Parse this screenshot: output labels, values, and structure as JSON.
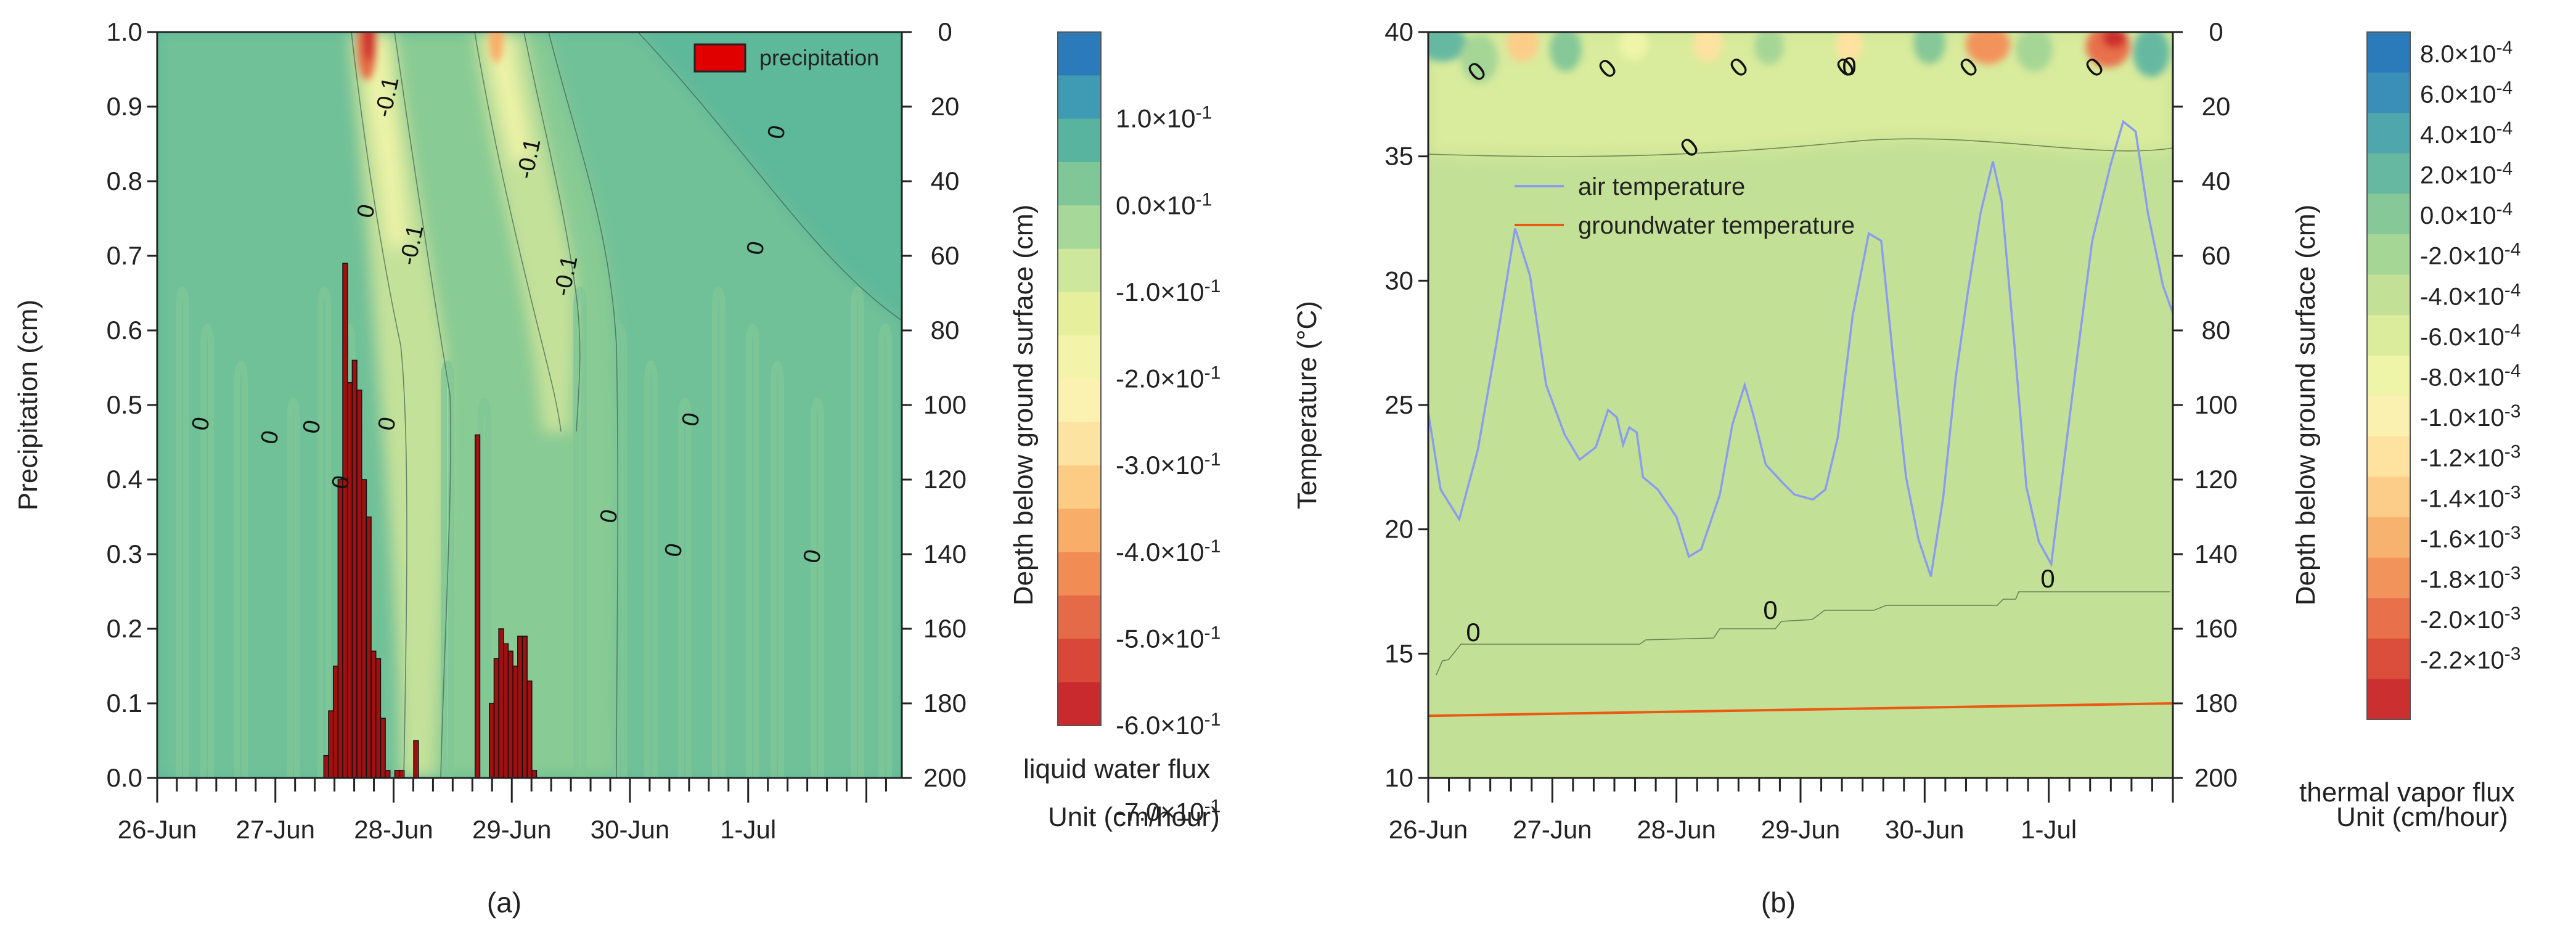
{
  "figure": {
    "panel_a_label": "(a)",
    "panel_b_label": "(b)"
  },
  "chart_data": [
    {
      "panel": "a",
      "type": "bar",
      "ylabel": "Precipitation (cm)",
      "y2label": "Depth below ground surface (cm)",
      "ylim": [
        0,
        1.0
      ],
      "yticks": [
        "0.0",
        "0.1",
        "0.2",
        "0.3",
        "0.4",
        "0.5",
        "0.6",
        "0.7",
        "0.8",
        "0.9",
        "1.0"
      ],
      "y2lim": [
        0,
        200
      ],
      "y2ticks": [
        "0",
        "20",
        "40",
        "60",
        "80",
        "100",
        "120",
        "140",
        "160",
        "180",
        "200"
      ],
      "x_categories": [
        "26-Jun",
        "27-Jun",
        "28-Jun",
        "29-Jun",
        "30-Jun",
        "1-Jul"
      ],
      "x_range_days": [
        0,
        6
      ],
      "legend": {
        "placement": "top-right",
        "entries": [
          "precipitation"
        ]
      },
      "background_color": "#5eb89a",
      "contour_labels": [
        "-0.1",
        "-0.1",
        "-0.1",
        "-0.1",
        "0",
        "0",
        "0",
        "0",
        "0",
        "0",
        "0",
        "0",
        "0",
        "0",
        "0",
        "0"
      ],
      "colorbar": {
        "title": "liquid water flux",
        "unit": "Unit (cm/hour)",
        "labels": [
          "1.0×10-1",
          "0.0×10-1",
          "-1.0×10-1",
          "-2.0×10-1",
          "-3.0×10-1",
          "-4.0×10-1",
          "-5.0×10-1",
          "-6.0×10-1",
          "-7.0×10-1"
        ],
        "colors": [
          "#2b7bba",
          "#3f9bb4",
          "#58b39f",
          "#7fc797",
          "#a6d89a",
          "#cde79c",
          "#e5ef9c",
          "#f3f4a9",
          "#fbf1b1",
          "#fde3a1",
          "#fccc85",
          "#f8ad68",
          "#f18c55",
          "#e56a47",
          "#d84738",
          "#c82a2e"
        ]
      },
      "series": [
        {
          "name": "precipitation",
          "color": "#c00000",
          "points": [
            {
              "t": 1.43,
              "v": 0.03
            },
            {
              "t": 1.47,
              "v": 0.09
            },
            {
              "t": 1.51,
              "v": 0.15
            },
            {
              "t": 1.55,
              "v": 0.4
            },
            {
              "t": 1.59,
              "v": 0.69
            },
            {
              "t": 1.63,
              "v": 0.53
            },
            {
              "t": 1.67,
              "v": 0.56
            },
            {
              "t": 1.71,
              "v": 0.52
            },
            {
              "t": 1.75,
              "v": 0.4
            },
            {
              "t": 1.79,
              "v": 0.35
            },
            {
              "t": 1.83,
              "v": 0.17
            },
            {
              "t": 1.87,
              "v": 0.16
            },
            {
              "t": 1.91,
              "v": 0.08
            },
            {
              "t": 1.95,
              "v": 0.01
            },
            {
              "t": 2.03,
              "v": 0.01
            },
            {
              "t": 2.07,
              "v": 0.01
            },
            {
              "t": 2.19,
              "v": 0.05
            },
            {
              "t": 2.71,
              "v": 0.46
            },
            {
              "t": 2.83,
              "v": 0.1
            },
            {
              "t": 2.87,
              "v": 0.16
            },
            {
              "t": 2.91,
              "v": 0.2
            },
            {
              "t": 2.95,
              "v": 0.18
            },
            {
              "t": 2.99,
              "v": 0.17
            },
            {
              "t": 3.03,
              "v": 0.15
            },
            {
              "t": 3.07,
              "v": 0.19
            },
            {
              "t": 3.11,
              "v": 0.19
            },
            {
              "t": 3.15,
              "v": 0.13
            },
            {
              "t": 3.19,
              "v": 0.01
            }
          ]
        }
      ]
    },
    {
      "panel": "b",
      "type": "line",
      "ylabel": "Temperature (°C)",
      "y2label": "Depth below ground surface (cm)",
      "ylim": [
        10,
        40
      ],
      "yticks": [
        "10",
        "15",
        "20",
        "25",
        "30",
        "35",
        "40"
      ],
      "y2lim": [
        0,
        200
      ],
      "y2ticks": [
        "0",
        "20",
        "40",
        "60",
        "80",
        "100",
        "120",
        "140",
        "160",
        "180",
        "200"
      ],
      "x_categories": [
        "26-Jun",
        "27-Jun",
        "28-Jun",
        "29-Jun",
        "30-Jun",
        "1-Jul"
      ],
      "x_range_days": [
        0,
        6
      ],
      "legend": {
        "placement": "upper-left",
        "entries": [
          "air temperature",
          "groundwater temperature"
        ]
      },
      "background_color": "#c3e196",
      "contour_labels": [
        "0",
        "0",
        "0",
        "0",
        "0",
        "0",
        "0",
        "0",
        "0",
        "0",
        "0"
      ],
      "colorbar": {
        "title": "thermal vapor flux",
        "unit": "Unit (cm/hour)",
        "labels": [
          "8.0×10-4",
          "6.0×10-4",
          "4.0×10-4",
          "2.0×10-4",
          "0.0×10-4",
          "-2.0×10-4",
          "-4.0×10-4",
          "-6.0×10-4",
          "-8.0×10-4",
          "-1.0×10-3",
          "-1.2×10-3",
          "-1.4×10-3",
          "-1.6×10-3",
          "-1.8×10-3",
          "-2.0×10-3",
          "-2.2×10-3"
        ],
        "colors": [
          "#2b7bba",
          "#3a8fb8",
          "#4fa6ad",
          "#66b9a0",
          "#86c898",
          "#a6d696",
          "#c3e196",
          "#dbec9c",
          "#eef4a8",
          "#faf1b1",
          "#fde2a0",
          "#fccd89",
          "#f8b26f",
          "#f2935c",
          "#e8704b",
          "#dc4e3c",
          "#cc2f2f"
        ]
      },
      "series": [
        {
          "name": "air temperature",
          "color": "#8a9cef",
          "points": [
            [
              0.0,
              24.7
            ],
            [
              0.1,
              21.6
            ],
            [
              0.25,
              20.4
            ],
            [
              0.4,
              23.2
            ],
            [
              0.55,
              27.5
            ],
            [
              0.7,
              32.1
            ],
            [
              0.82,
              30.2
            ],
            [
              0.95,
              25.8
            ],
            [
              1.1,
              23.8
            ],
            [
              1.22,
              22.8
            ],
            [
              1.35,
              23.3
            ],
            [
              1.45,
              24.8
            ],
            [
              1.52,
              24.5
            ],
            [
              1.57,
              23.4
            ],
            [
              1.62,
              24.1
            ],
            [
              1.68,
              23.9
            ],
            [
              1.73,
              22.1
            ],
            [
              1.85,
              21.6
            ],
            [
              2.0,
              20.5
            ],
            [
              2.1,
              18.9
            ],
            [
              2.2,
              19.2
            ],
            [
              2.35,
              21.4
            ],
            [
              2.45,
              24.2
            ],
            [
              2.55,
              25.8
            ],
            [
              2.62,
              24.6
            ],
            [
              2.72,
              22.6
            ],
            [
              2.85,
              21.9
            ],
            [
              2.95,
              21.4
            ],
            [
              3.1,
              21.2
            ],
            [
              3.2,
              21.6
            ],
            [
              3.3,
              23.7
            ],
            [
              3.42,
              28.6
            ],
            [
              3.55,
              31.9
            ],
            [
              3.65,
              31.6
            ],
            [
              3.75,
              26.7
            ],
            [
              3.85,
              22.1
            ],
            [
              3.95,
              19.6
            ],
            [
              4.05,
              18.1
            ],
            [
              4.15,
              21.3
            ],
            [
              4.25,
              26.1
            ],
            [
              4.35,
              29.6
            ],
            [
              4.45,
              32.7
            ],
            [
              4.55,
              34.8
            ],
            [
              4.62,
              33.2
            ],
            [
              4.72,
              27.6
            ],
            [
              4.82,
              21.7
            ],
            [
              4.92,
              19.5
            ],
            [
              5.02,
              18.6
            ],
            [
              5.1,
              21.8
            ],
            [
              5.22,
              26.6
            ],
            [
              5.35,
              31.6
            ],
            [
              5.5,
              34.7
            ],
            [
              5.6,
              36.4
            ],
            [
              5.7,
              36.0
            ],
            [
              5.8,
              32.7
            ],
            [
              5.92,
              29.8
            ],
            [
              6.0,
              28.7
            ]
          ]
        },
        {
          "name": "groundwater temperature",
          "color": "#ea5a14",
          "points": [
            [
              0.0,
              12.5
            ],
            [
              6.0,
              13.0
            ]
          ]
        }
      ]
    }
  ]
}
